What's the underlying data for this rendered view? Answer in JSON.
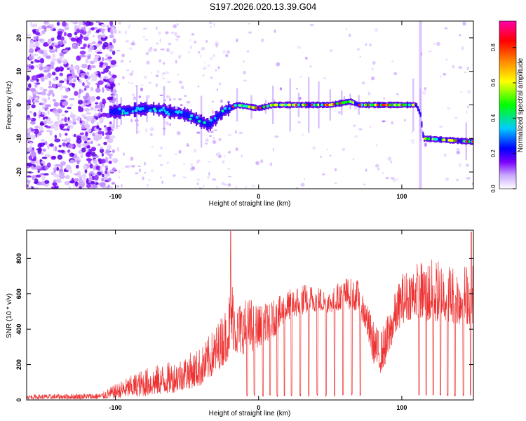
{
  "title": "S197.2026.020.13.39.G04",
  "chart_data": [
    {
      "type": "heatmap",
      "xlabel": "Height of straight line (km)",
      "ylabel": "Frequency (Hz)",
      "xlim": [
        -162,
        150
      ],
      "ylim": [
        -25,
        25
      ],
      "x_ticks": [
        -100,
        0,
        100
      ],
      "y_ticks": [
        -20,
        -10,
        0,
        10,
        20
      ],
      "colorbar": {
        "label": "Normalized spectral amplitude",
        "range": [
          0,
          0.95
        ],
        "ticks": [
          0.0,
          0.2,
          0.4,
          0.6,
          0.8
        ],
        "tick_labels": [
          "0.0",
          "0.2",
          "0.4",
          "0.6",
          "0.8"
        ],
        "colors": [
          "#ffffff",
          "#b377ff",
          "#7a00ff",
          "#0000ff",
          "#00ccff",
          "#00ff00",
          "#ffff00",
          "#ff8800",
          "#ff0000",
          "#ff00aa"
        ]
      },
      "ridge": [
        {
          "x": -162,
          "y": null
        },
        {
          "x": -100,
          "y": -2
        },
        {
          "x": -75,
          "y": -1
        },
        {
          "x": -50,
          "y": -3
        },
        {
          "x": -35,
          "y": -6
        },
        {
          "x": -25,
          "y": -2
        },
        {
          "x": -15,
          "y": 0
        },
        {
          "x": 0,
          "y": -1
        },
        {
          "x": 10,
          "y": 0
        },
        {
          "x": 50,
          "y": 0
        },
        {
          "x": 64,
          "y": 1
        },
        {
          "x": 70,
          "y": 0
        },
        {
          "x": 110,
          "y": 0
        },
        {
          "x": 113,
          "y": -3
        },
        {
          "x": 115,
          "y": -10
        },
        {
          "x": 150,
          "y": -11
        }
      ]
    },
    {
      "type": "line",
      "xlabel": "Height of straight line (km)",
      "ylabel": "SNR (10 * v/v)",
      "xlim": [
        -162,
        150
      ],
      "ylim": [
        0,
        960
      ],
      "x_ticks": [
        -100,
        0,
        100
      ],
      "y_ticks": [
        0,
        200,
        400,
        600,
        800
      ],
      "color": "#ee3333",
      "envelope": {
        "x": [
          -162,
          -110,
          -100,
          -80,
          -60,
          -40,
          -30,
          -22,
          -19,
          -15,
          -5,
          0,
          10,
          20,
          30,
          40,
          50,
          60,
          70,
          75,
          80,
          85,
          90,
          95,
          100,
          110,
          120,
          130,
          140,
          150
        ],
        "low": [
          5,
          5,
          10,
          20,
          40,
          80,
          150,
          220,
          300,
          250,
          270,
          300,
          350,
          450,
          480,
          500,
          490,
          520,
          500,
          380,
          210,
          150,
          220,
          360,
          430,
          470,
          430,
          450,
          420,
          430
        ],
        "high": [
          30,
          40,
          90,
          180,
          220,
          300,
          420,
          540,
          700,
          560,
          580,
          540,
          560,
          620,
          660,
          650,
          620,
          700,
          680,
          570,
          450,
          380,
          480,
          600,
          720,
          780,
          800,
          790,
          760,
          800
        ]
      },
      "spikes_x": [
        -19.5,
        148.5
      ],
      "spikes_y": [
        955,
        950
      ],
      "dropouts_x": [
        -8,
        -3,
        3,
        8,
        13,
        18,
        23,
        29,
        35,
        41,
        47,
        53,
        59,
        65,
        71,
        112,
        117,
        122,
        127,
        132,
        137,
        143,
        148
      ]
    }
  ]
}
